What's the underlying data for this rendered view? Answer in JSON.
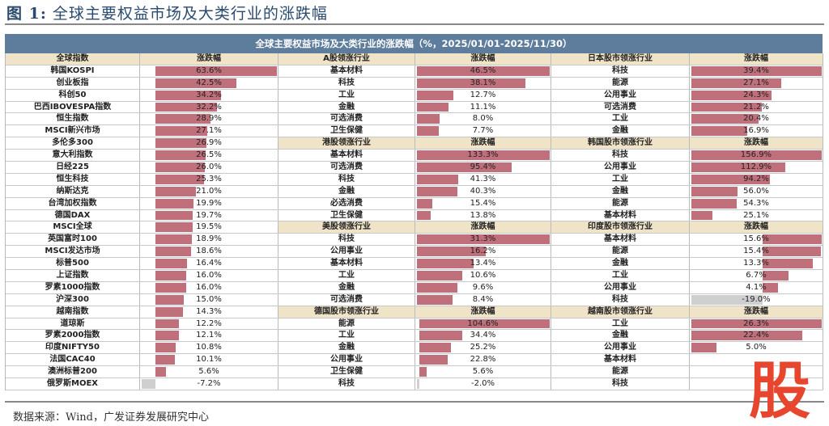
{
  "title": {
    "prefix": "图 1:",
    "text": "全球主要权益市场及大类行业的涨跌幅"
  },
  "banner": "全球主要权益市场及大类行业的涨跌幅（%，2025/01/01-2025/11/30）",
  "source": "数据来源：Wind，广发证券发展研究中心",
  "logo": "股",
  "colors": {
    "banner": "#5e7d9d",
    "header": "#f0e4c8",
    "positive": "#c0707b",
    "negative": "#cfcfcf"
  },
  "global": {
    "header": "全球指数",
    "value_header": "涨跌幅",
    "rows": [
      {
        "name": "韩国KOSPI",
        "value": 63.6
      },
      {
        "name": "创业板指",
        "value": 42.5
      },
      {
        "name": "科创50",
        "value": 34.2
      },
      {
        "name": "巴西IBOVESPA指数",
        "value": 32.2
      },
      {
        "name": "恒生指数",
        "value": 28.9
      },
      {
        "name": "MSCI新兴市场",
        "value": 27.1
      },
      {
        "name": "多伦多300",
        "value": 26.9
      },
      {
        "name": "意大利指数",
        "value": 26.5
      },
      {
        "name": "日经225",
        "value": 26.0
      },
      {
        "name": "恒生科技",
        "value": 25.3
      },
      {
        "name": "纳斯达克",
        "value": 21.0
      },
      {
        "name": "台湾加权指数",
        "value": 19.9
      },
      {
        "name": "德国DAX",
        "value": 19.7
      },
      {
        "name": "MSCI全球",
        "value": 19.5
      },
      {
        "name": "英国富时100",
        "value": 18.9
      },
      {
        "name": "MSCI发达市场",
        "value": 18.6
      },
      {
        "name": "标普500",
        "value": 16.4
      },
      {
        "name": "上证指数",
        "value": 16.0
      },
      {
        "name": "罗素1000指数",
        "value": 16.0
      },
      {
        "name": "沪深300",
        "value": 15.0
      },
      {
        "name": "越南指数",
        "value": 14.3
      },
      {
        "name": "道琼斯",
        "value": 12.2
      },
      {
        "name": "罗素2000指数",
        "value": 12.1
      },
      {
        "name": "印度NIFTY50",
        "value": 10.8
      },
      {
        "name": "法国CAC40",
        "value": 10.1
      },
      {
        "name": "澳洲标普200",
        "value": 5.6
      },
      {
        "name": "俄罗斯MOEX",
        "value": -7.2
      }
    ]
  },
  "middle_sections": [
    {
      "header": "A股领涨行业",
      "value_header": "涨跌幅",
      "rows": [
        {
          "name": "基本材料",
          "value": 46.5
        },
        {
          "name": "科技",
          "value": 38.1
        },
        {
          "name": "工业",
          "value": 12.7
        },
        {
          "name": "金融",
          "value": 11.1
        },
        {
          "name": "可选消费",
          "value": 8.0
        },
        {
          "name": "卫生保健",
          "value": 7.7
        }
      ]
    },
    {
      "header": "港股领涨行业",
      "value_header": "涨跌幅",
      "rows": [
        {
          "name": "基本材料",
          "value": 133.3
        },
        {
          "name": "可选消费",
          "value": 95.4
        },
        {
          "name": "科技",
          "value": 41.3
        },
        {
          "name": "金融",
          "value": 40.3
        },
        {
          "name": "必选消费",
          "value": 15.4
        },
        {
          "name": "卫生保健",
          "value": 13.8
        }
      ]
    },
    {
      "header": "美股领涨行业",
      "value_header": "涨跌幅",
      "rows": [
        {
          "name": "科技",
          "value": 31.3
        },
        {
          "name": "公用事业",
          "value": 16.2
        },
        {
          "name": "基本材料",
          "value": 13.4
        },
        {
          "name": "工业",
          "value": 10.6
        },
        {
          "name": "金融",
          "value": 9.6
        },
        {
          "name": "可选消费",
          "value": 8.4
        }
      ]
    },
    {
      "header": "德国股市领涨行业",
      "value_header": "涨跌幅",
      "rows": [
        {
          "name": "能源",
          "value": 104.6
        },
        {
          "name": "工业",
          "value": 34.4
        },
        {
          "name": "金融",
          "value": 25.2
        },
        {
          "name": "公用事业",
          "value": 22.8
        },
        {
          "name": "卫生保健",
          "value": 5.6
        },
        {
          "name": "科技",
          "value": -2.0
        }
      ]
    }
  ],
  "right_sections": [
    {
      "header": "日本股市领涨行业",
      "value_header": "涨跌幅",
      "rows": [
        {
          "name": "科技",
          "value": 39.4
        },
        {
          "name": "能源",
          "value": 27.1
        },
        {
          "name": "公用事业",
          "value": 24.3
        },
        {
          "name": "可选消费",
          "value": 21.2
        },
        {
          "name": "工业",
          "value": 20.4
        },
        {
          "name": "金融",
          "value": 16.9
        }
      ]
    },
    {
      "header": "韩国股市领涨行业",
      "value_header": "涨跌幅",
      "rows": [
        {
          "name": "科技",
          "value": 156.9
        },
        {
          "name": "公用事业",
          "value": 112.9
        },
        {
          "name": "工业",
          "value": 94.2
        },
        {
          "name": "金融",
          "value": 56.0
        },
        {
          "name": "能源",
          "value": 54.3
        },
        {
          "name": "基本材料",
          "value": 25.1
        }
      ]
    },
    {
      "header": "印度股市领涨行业",
      "value_header": "涨跌幅",
      "rows": [
        {
          "name": "基本材料",
          "value": 15.6
        },
        {
          "name": "能源",
          "value": 15.4
        },
        {
          "name": "金融",
          "value": 13.3
        },
        {
          "name": "工业",
          "value": 6.7
        },
        {
          "name": "公用事业",
          "value": 4.1
        },
        {
          "name": "科技",
          "value": -19.0
        }
      ]
    },
    {
      "header": "越南股市领涨行业",
      "value_header": "涨跌幅",
      "rows": [
        {
          "name": "工业",
          "value": 26.3
        },
        {
          "name": "金融",
          "value": 22.4
        },
        {
          "name": "公用事业",
          "value": 5.0
        },
        {
          "name": "基本材料",
          "value": null
        },
        {
          "name": "能源",
          "value": null
        },
        {
          "name": "科技",
          "value": null
        }
      ]
    }
  ]
}
